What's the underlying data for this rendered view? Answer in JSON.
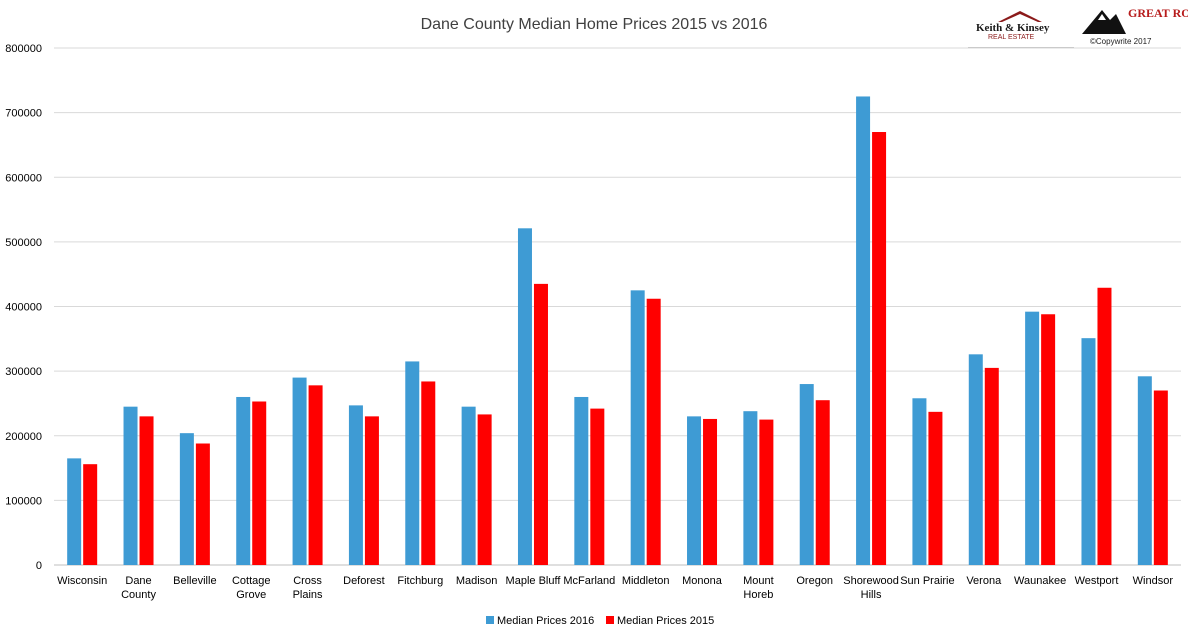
{
  "header": {
    "logo_left_text": "Keith & Kinsey",
    "logo_left_sub": "REAL ESTATE",
    "logo_right_text": "GREAT ROCK",
    "copyright": "©Copywrite 2017"
  },
  "colors": {
    "series_2016": "#3E9BD4",
    "series_2015": "#FF0000",
    "gridline": "#D9D9D9",
    "axis_text": "#000000"
  },
  "chart_data": {
    "type": "bar",
    "title": "Dane County Median Home Prices 2015 vs 2016",
    "xlabel": "",
    "ylabel": "",
    "ylim": [
      0,
      800000
    ],
    "yticks": [
      0,
      100000,
      200000,
      300000,
      400000,
      500000,
      600000,
      700000,
      800000
    ],
    "grid": true,
    "legend_position": "bottom",
    "categories": [
      [
        "Wisconsin"
      ],
      [
        "Dane",
        "County"
      ],
      [
        "Belleville"
      ],
      [
        "Cottage",
        "Grove"
      ],
      [
        "Cross",
        "Plains"
      ],
      [
        "Deforest"
      ],
      [
        "Fitchburg"
      ],
      [
        "Madison"
      ],
      [
        "Maple Bluff"
      ],
      [
        "McFarland"
      ],
      [
        "Middleton"
      ],
      [
        "Monona"
      ],
      [
        "Mount",
        "Horeb"
      ],
      [
        "Oregon"
      ],
      [
        "Shorewood",
        "Hills"
      ],
      [
        "Sun Prairie"
      ],
      [
        "Verona"
      ],
      [
        "Waunakee"
      ],
      [
        "Westport"
      ],
      [
        "Windsor"
      ]
    ],
    "series": [
      {
        "name": "Median Prices 2016",
        "color": "#3E9BD4",
        "values": [
          165000,
          245000,
          204000,
          260000,
          290000,
          247000,
          315000,
          245000,
          521000,
          260000,
          425000,
          230000,
          238000,
          280000,
          725000,
          258000,
          326000,
          392000,
          351000,
          292000
        ]
      },
      {
        "name": "Median Prices 2015",
        "color": "#FF0000",
        "values": [
          156000,
          230000,
          188000,
          253000,
          278000,
          230000,
          284000,
          233000,
          435000,
          242000,
          412000,
          226000,
          225000,
          255000,
          670000,
          237000,
          305000,
          388000,
          429000,
          270000
        ]
      }
    ]
  }
}
